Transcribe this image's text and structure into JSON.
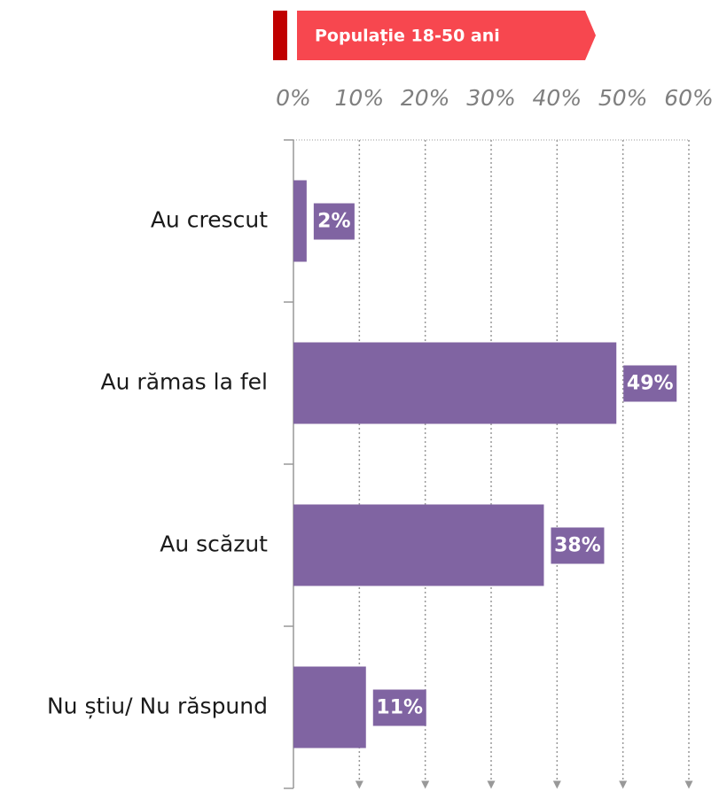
{
  "chart_data": {
    "type": "bar",
    "orientation": "horizontal",
    "title": "Populație 18-50 ani",
    "categories": [
      "Au crescut",
      "Au rămas la fel",
      "Au scăzut",
      "Nu știu/ Nu răspund"
    ],
    "values": [
      2,
      49,
      38,
      11
    ],
    "value_labels": [
      "2%",
      "49%",
      "38%",
      "11%"
    ],
    "color": "#8064a2",
    "xlim": [
      0,
      60
    ],
    "xticks": [
      {
        "value": 0,
        "label": "0%"
      },
      {
        "value": 10,
        "label": "10%"
      },
      {
        "value": 20,
        "label": "20%"
      },
      {
        "value": 30,
        "label": "30%"
      },
      {
        "value": 40,
        "label": "40%"
      },
      {
        "value": 50,
        "label": "50%"
      },
      {
        "value": 60,
        "label": "60%"
      }
    ],
    "grid": true
  }
}
